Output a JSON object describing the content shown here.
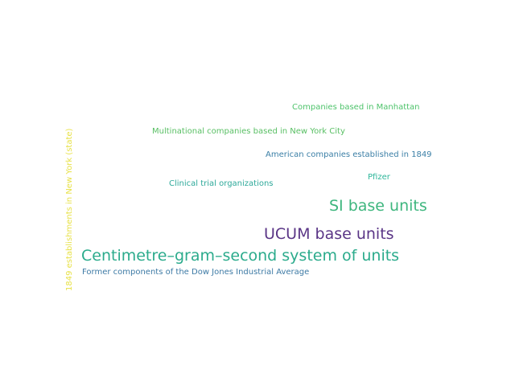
{
  "word_cloud": {
    "words": [
      {
        "id": "companies-manhattan",
        "text": "Companies based in Manhattan",
        "color": "#4ec36b"
      },
      {
        "id": "multinational-nyc",
        "text": "Multinational companies based in New York City",
        "color": "#58bf63"
      },
      {
        "id": "american-1849",
        "text": "American companies established in 1849",
        "color": "#3b7fa6"
      },
      {
        "id": "pfizer",
        "text": "Pfizer",
        "color": "#2eb69a"
      },
      {
        "id": "clinical-trial",
        "text": "Clinical trial organizations",
        "color": "#2ea99a"
      },
      {
        "id": "si-base-units",
        "text": "SI base units",
        "color": "#3eb67e"
      },
      {
        "id": "ucum-base-units",
        "text": "UCUM base units",
        "color": "#5a3586"
      },
      {
        "id": "cgs-system",
        "text": "Centimetre–gram–second system of units",
        "color": "#2bab8c"
      },
      {
        "id": "dow-jones",
        "text": "Former components of the Dow Jones Industrial Average",
        "color": "#3d7aa5"
      },
      {
        "id": "ny-1849",
        "text": "1849 establishments in New York (state)",
        "color": "#e7e146"
      }
    ]
  }
}
